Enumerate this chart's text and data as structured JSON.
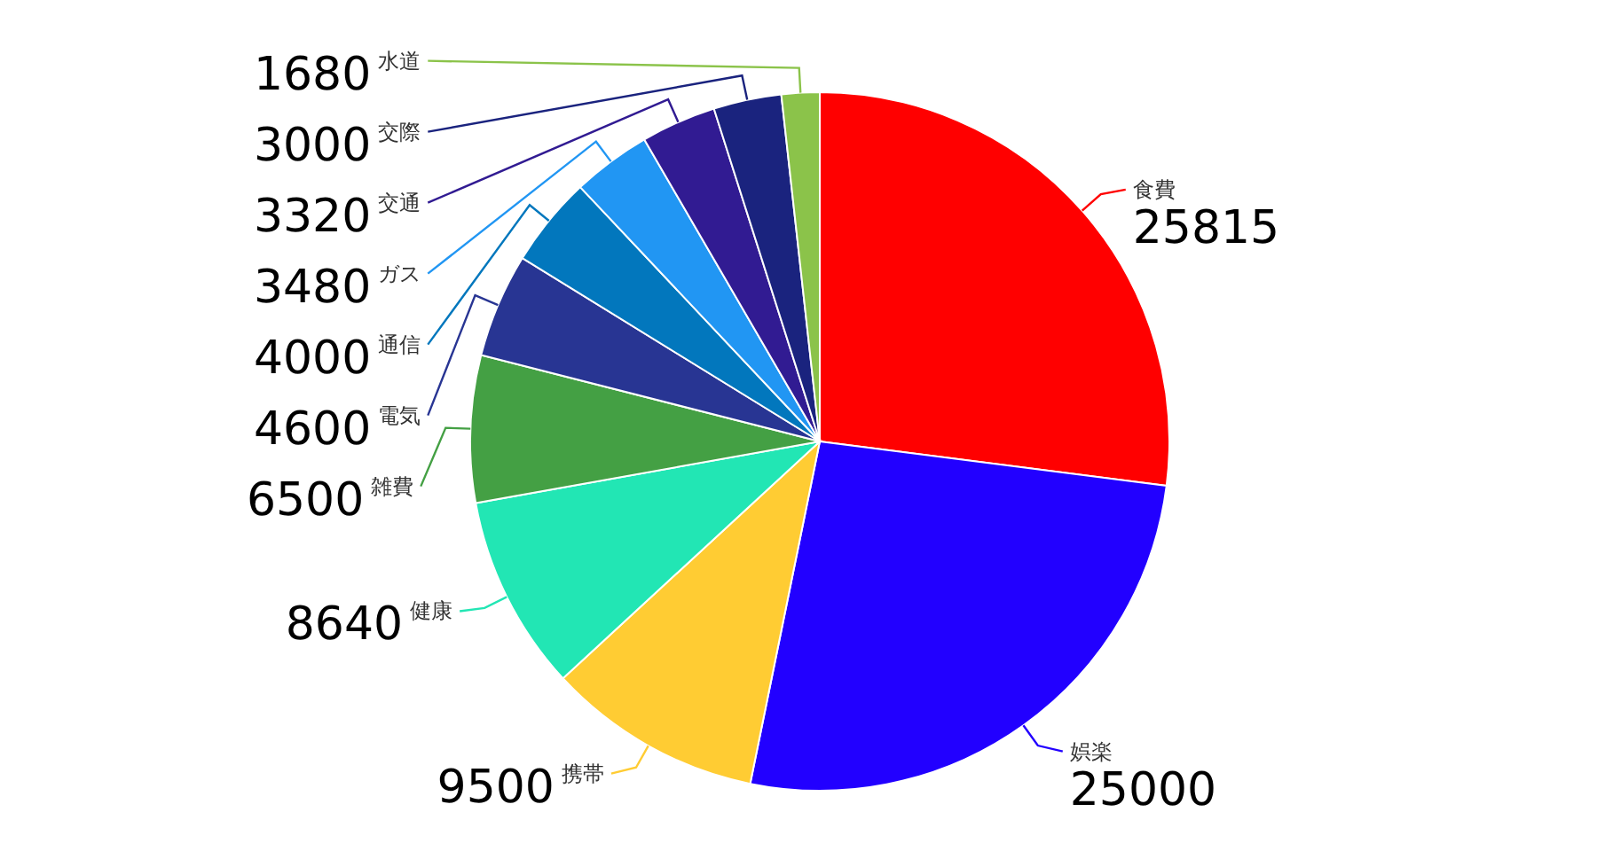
{
  "chart_data": {
    "type": "pie",
    "categories": [
      "食費",
      "娯楽",
      "携帯",
      "健康",
      "雑費",
      "電気",
      "通信",
      "ガス",
      "交通",
      "交際",
      "水道"
    ],
    "values": [
      25815,
      25000,
      9500,
      8640,
      6500,
      4600,
      4000,
      3480,
      3320,
      3000,
      1680
    ],
    "colors": [
      "#ff0000",
      "#2200ff",
      "#ffcc33",
      "#22e6b4",
      "#44a044",
      "#283593",
      "#0277bd",
      "#2196f3",
      "#311b92",
      "#1a237e",
      "#8bc34a"
    ],
    "data_labels": true
  }
}
